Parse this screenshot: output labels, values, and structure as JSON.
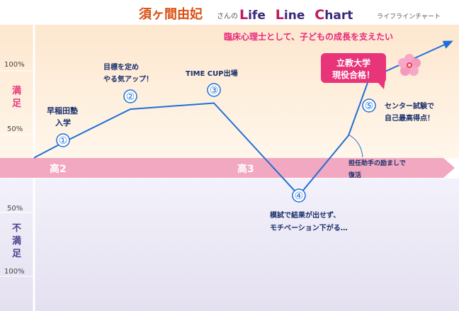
{
  "header": {
    "name": "須ヶ間由妃",
    "name_suffix": "さんの",
    "title_words": [
      {
        "initial": "L",
        "rest": "ife"
      },
      {
        "initial": "L",
        "rest": "ine"
      },
      {
        "initial": "C",
        "rest": "hart"
      }
    ],
    "subtitle": "ライフラインチャート"
  },
  "axis_labels": {
    "top_100": "100%",
    "top_50": "50%",
    "bottom_50": "50%",
    "bottom_100": "100%",
    "satisfied": [
      "満",
      "足"
    ],
    "unsatisfied": [
      "不",
      "満",
      "足"
    ]
  },
  "timeline": {
    "periods": [
      "高2",
      "高3"
    ]
  },
  "goal_text": "臨床心理士として、子どもの成長を支えたい",
  "badge": {
    "lines": [
      "立教大学",
      "現役合格！"
    ]
  },
  "colors": {
    "header_name": "#d94f12",
    "title_initial": "#c0185f",
    "title_rest": "#3a2a7e",
    "goal_text": "#e8277a",
    "line": "#1f6fd6",
    "label_text": "#1a2f6b",
    "satisfied_label": "#e8357a",
    "unsatisfied_label": "#4a3f8f",
    "band": "#f2a8c0",
    "badge": "#e8357a"
  },
  "chart_data": {
    "type": "line",
    "y_axis": {
      "range": [
        -100,
        100
      ],
      "ticks": [
        100,
        50,
        -50,
        -100
      ],
      "tick_labels": [
        "100%",
        "50%",
        "50%",
        "100%"
      ]
    },
    "series": [
      {
        "values": [
          10,
          25,
          58,
          64,
          -58,
          32,
          88,
          125
        ]
      }
    ],
    "events": [
      {
        "number": "①",
        "label": [
          "早稲田塾",
          "入学"
        ],
        "value": 10
      },
      {
        "number": "②",
        "label": [
          "目標を定め",
          "やる気アップ！"
        ],
        "value": 58
      },
      {
        "number": "③",
        "label": [
          "TIME CUP出場"
        ],
        "value": 64
      },
      {
        "number": "④",
        "label": [
          "模試で結果が出せず、",
          "モチベーション下がる…"
        ],
        "value": -58
      },
      {
        "number": "⑤",
        "label": [
          "センター試験で",
          "自己最高得点！"
        ],
        "value": 32
      }
    ],
    "annotation": [
      "担任助手の励ましで",
      "復活"
    ]
  }
}
